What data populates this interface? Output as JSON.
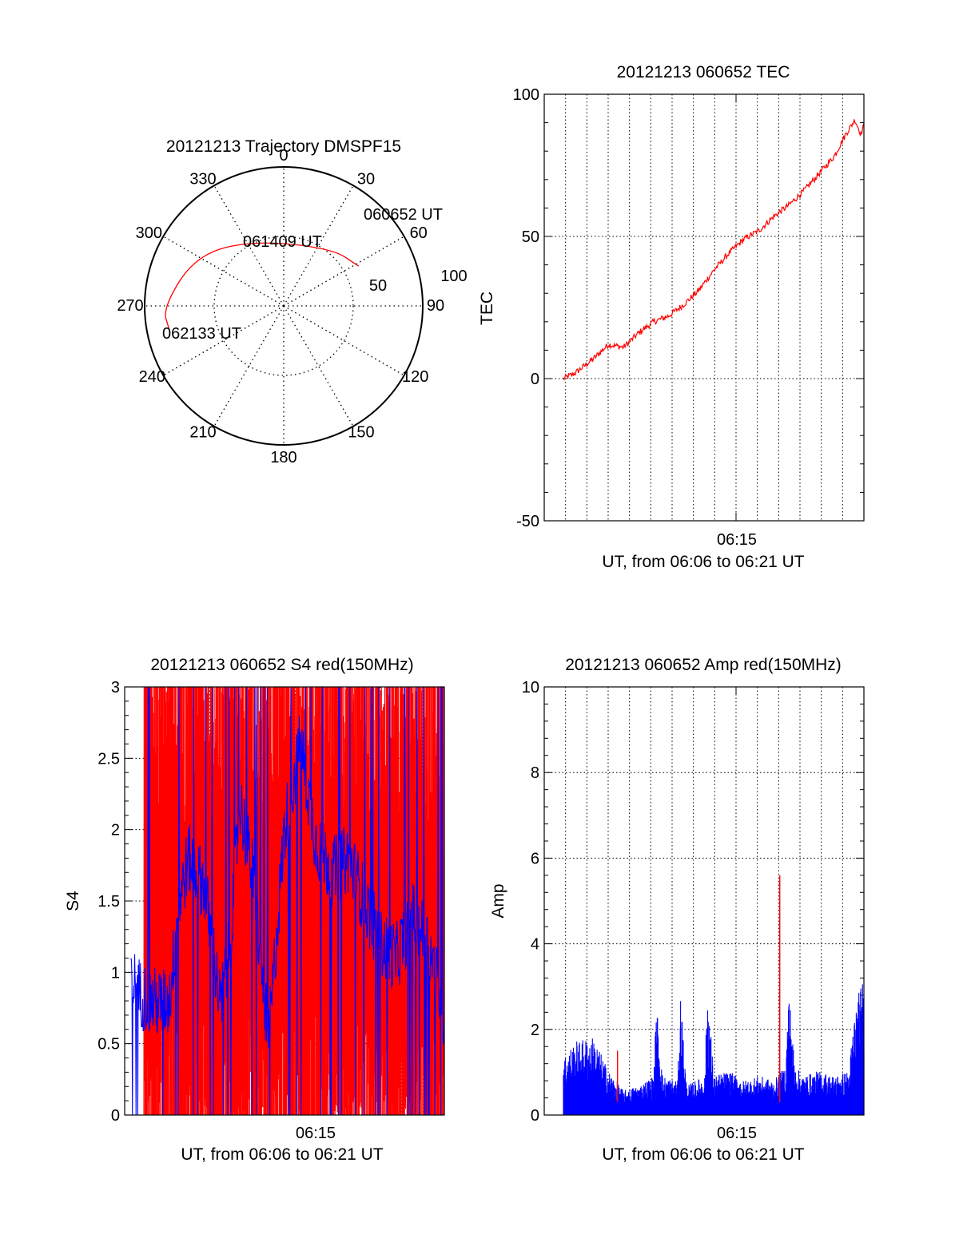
{
  "colors": {
    "red": "#ff0000",
    "blue": "#0000ff",
    "axis": "#000000",
    "grid": "#000000"
  },
  "chart_data": [
    {
      "id": "trajectory",
      "type": "polar",
      "title": "20121213 Trajectory DMSPF15",
      "azimuth_labels": [
        "0",
        "30",
        "60",
        "90",
        "120",
        "150",
        "180",
        "210",
        "240",
        "270",
        "300",
        "330"
      ],
      "radial_labels": [
        "50",
        "100"
      ],
      "grid": true,
      "track": {
        "color": "#ff0000",
        "points": [
          {
            "az": 62,
            "r": 61,
            "label": "060652 UT"
          },
          {
            "az": 40,
            "r": 54
          },
          {
            "az": 335,
            "r": 52,
            "label": "061409 UT"
          },
          {
            "az": 300,
            "r": 73
          },
          {
            "az": 269,
            "r": 87
          },
          {
            "az": 258,
            "r": 84,
            "label": "062133 UT"
          }
        ]
      }
    },
    {
      "id": "tec",
      "type": "line",
      "title": "20121213 060652 TEC",
      "ylabel": "TEC",
      "xlabel": "UT, from 06:06 to 06:21 UT",
      "ylim": [
        -50,
        100
      ],
      "yticks": [
        "-50",
        "0",
        "50",
        "100"
      ],
      "xtick_label": "06:15",
      "grid": true,
      "series": [
        {
          "color": "#ff0000",
          "x_frac": [
            0,
            0.04,
            0.1,
            0.15,
            0.2,
            0.25,
            0.3,
            0.35,
            0.4,
            0.45,
            0.5,
            0.55,
            0.6,
            0.65,
            0.7,
            0.75,
            0.8,
            0.85,
            0.9,
            0.94,
            0.97,
            0.99,
            1.0
          ],
          "values": [
            0,
            2,
            7,
            12,
            11,
            16,
            20,
            22,
            26,
            31,
            38,
            44,
            49,
            52,
            57,
            61,
            66,
            72,
            78,
            86,
            91,
            86,
            89
          ]
        }
      ]
    },
    {
      "id": "s4",
      "type": "line",
      "title": "20121213 060652 S4 red(150MHz)",
      "ylabel": "S4",
      "xlabel": "UT, from 06:06 to 06:21 UT",
      "ylim": [
        0,
        3
      ],
      "yticks": [
        "0",
        "0.5",
        "1",
        "1.5",
        "2",
        "2.5",
        "3"
      ],
      "xtick_label": "06:15",
      "grid": true,
      "series": [
        {
          "name": "",
          "color": "#ff0000",
          "style": "dense-spikes",
          "range": [
            0,
            3
          ]
        },
        {
          "name": "",
          "color": "#0000ff",
          "x_frac": [
            0.02,
            0.05,
            0.08,
            0.11,
            0.14,
            0.17,
            0.2,
            0.25,
            0.3,
            0.33,
            0.36,
            0.4,
            0.45,
            0.5,
            0.55,
            0.6,
            0.65,
            0.7,
            0.75,
            0.8,
            0.85,
            0.9,
            0.95,
            1.0
          ],
          "values": [
            0.95,
            0.85,
            0.8,
            0.78,
            0.8,
            1.5,
            1.8,
            1.6,
            0.75,
            1.2,
            2.2,
            1.7,
            0.5,
            2.0,
            2.6,
            1.9,
            1.7,
            1.8,
            1.5,
            1.2,
            1.1,
            1.4,
            1.2,
            0.7
          ]
        }
      ]
    },
    {
      "id": "amp",
      "type": "line",
      "title": "20121213 060652 Amp red(150MHz)",
      "ylabel": "Amp",
      "xlabel": "UT, from 06:06 to 06:21 UT",
      "ylim": [
        0,
        10
      ],
      "yticks": [
        "0",
        "2",
        "4",
        "6",
        "8",
        "10"
      ],
      "xtick_label": "06:15",
      "grid": true,
      "series": [
        {
          "name": "",
          "color": "#ff0000",
          "spikes": [
            {
              "x_frac": 0.18,
              "value": 1.5
            },
            {
              "x_frac": 0.72,
              "value": 5.6
            }
          ]
        },
        {
          "name": "",
          "color": "#0000ff",
          "x_frac": [
            0,
            0.04,
            0.1,
            0.15,
            0.2,
            0.25,
            0.3,
            0.31,
            0.33,
            0.38,
            0.39,
            0.41,
            0.47,
            0.48,
            0.5,
            0.55,
            0.6,
            0.65,
            0.7,
            0.74,
            0.75,
            0.77,
            0.8,
            0.85,
            0.9,
            0.95,
            0.97,
            1.0
          ],
          "values": [
            1.2,
            1.5,
            1.6,
            0.9,
            0.5,
            0.6,
            0.8,
            2.3,
            0.8,
            0.7,
            2.5,
            0.6,
            0.8,
            2.7,
            0.8,
            0.9,
            0.7,
            0.8,
            0.7,
            1.0,
            2.7,
            1.0,
            0.8,
            0.9,
            0.8,
            0.9,
            2.2,
            2.9
          ]
        }
      ]
    }
  ]
}
